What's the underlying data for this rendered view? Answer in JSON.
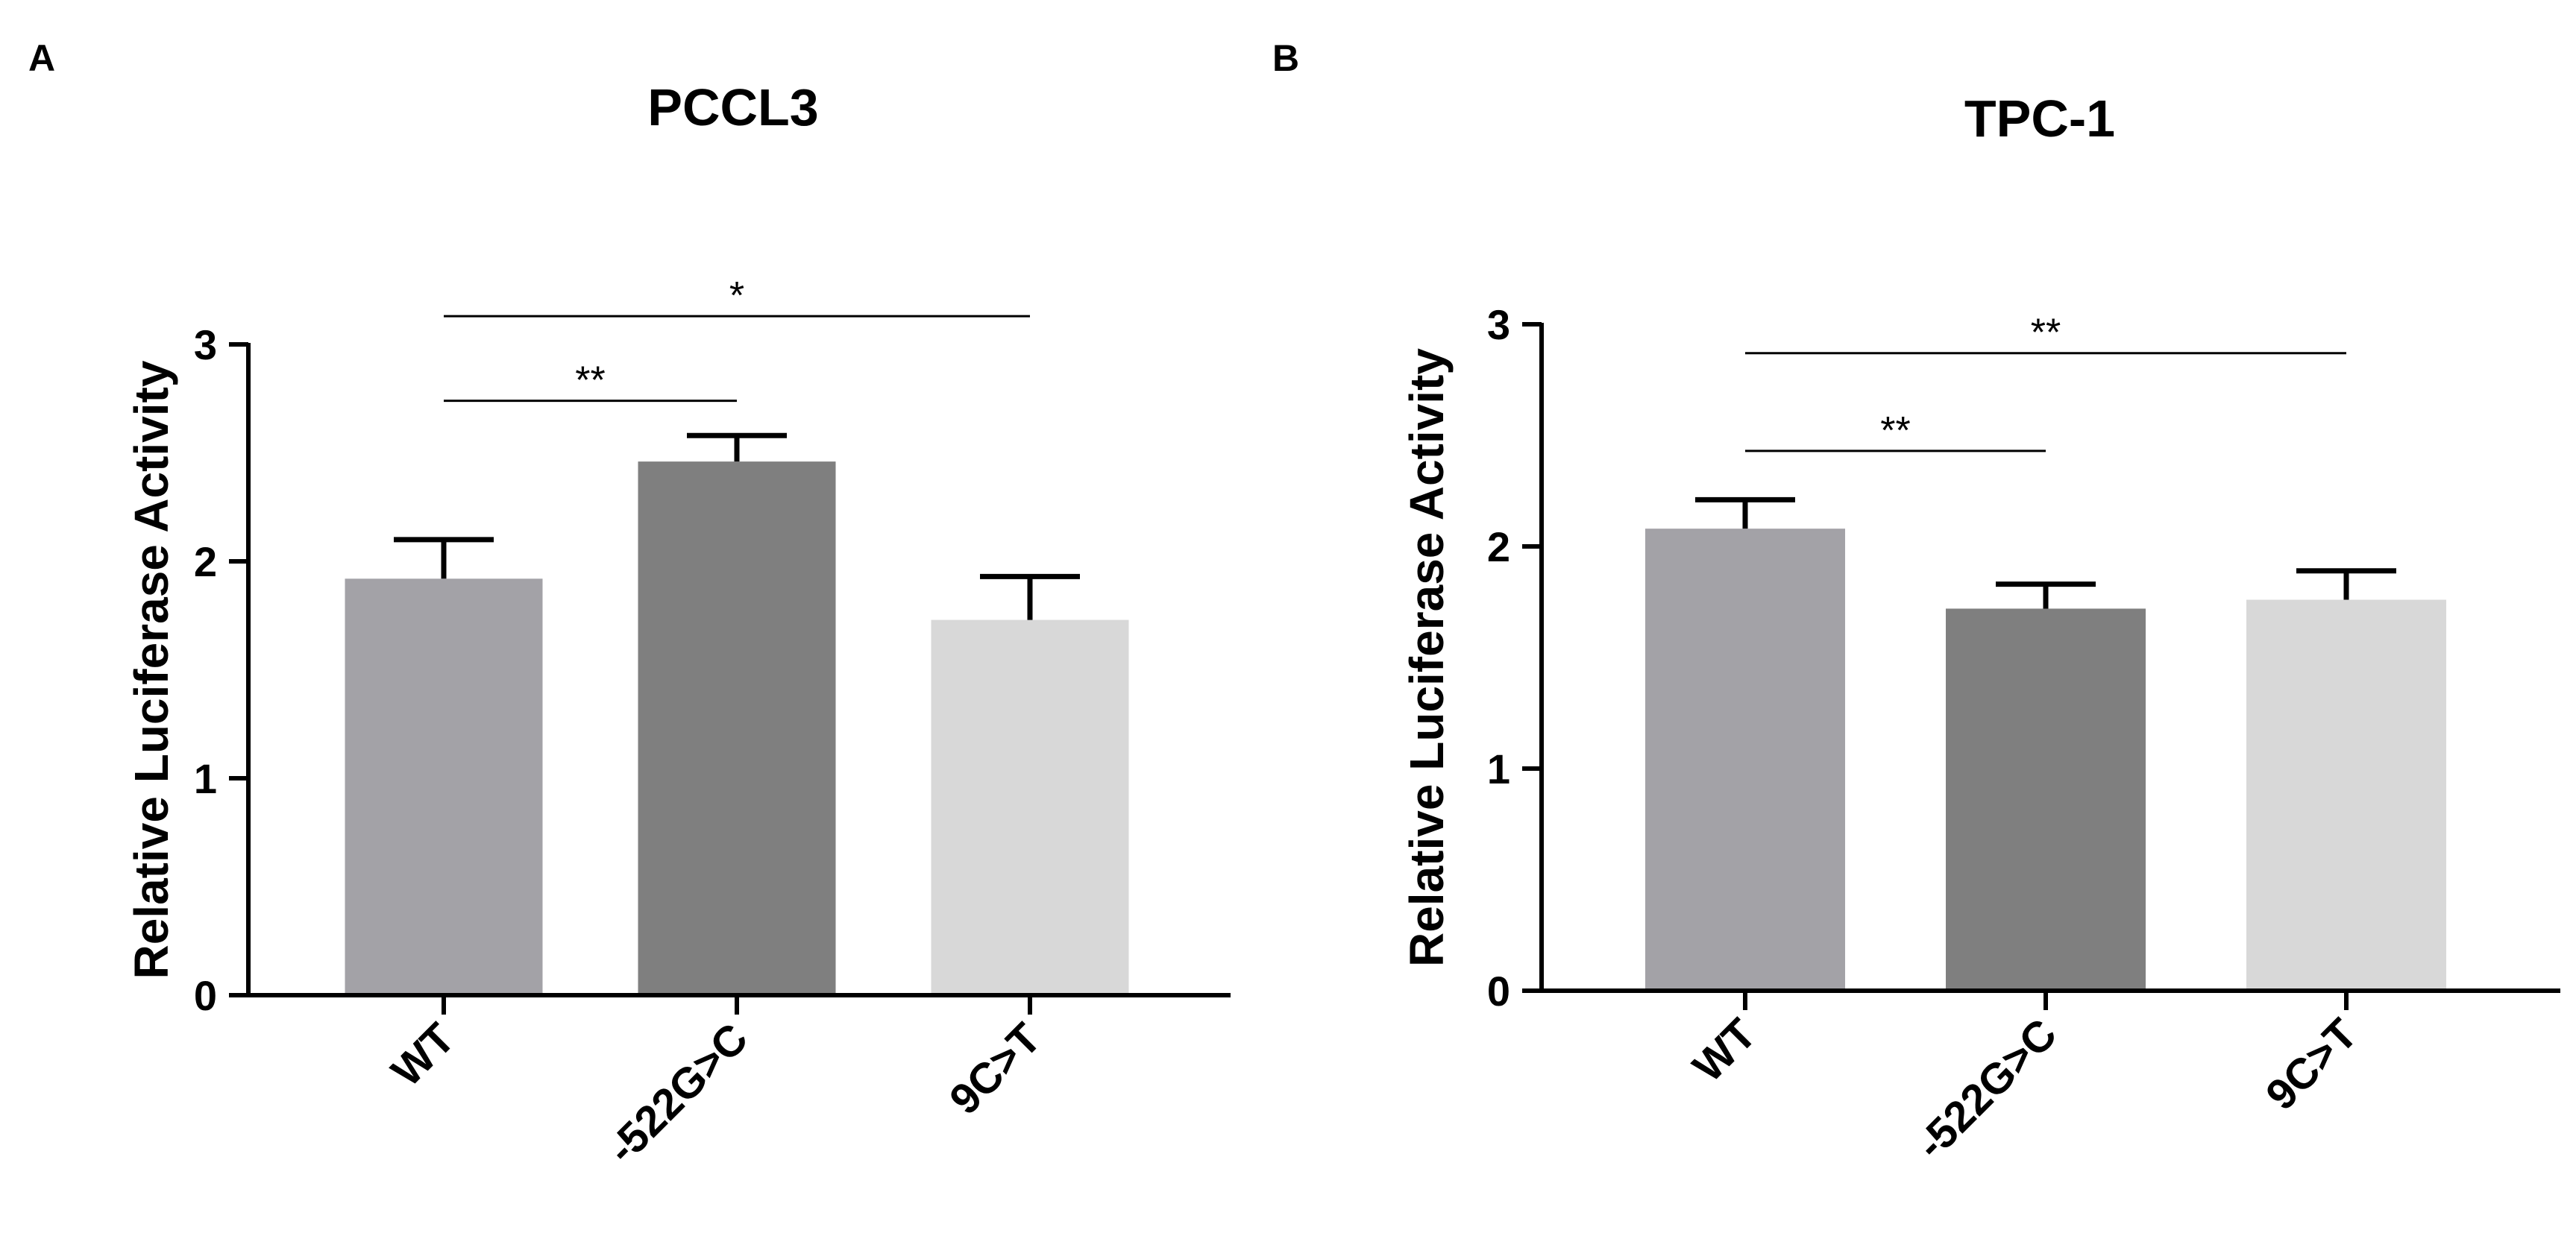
{
  "chart_data": [
    {
      "panel": "A",
      "type": "bar",
      "title": "PCCL3",
      "xlabel": "",
      "ylabel": "Relative Luciferase Activity",
      "ylim": [
        0,
        3
      ],
      "yticks": [
        "0",
        "1",
        "2",
        "3"
      ],
      "categories": [
        "WT",
        "-522G>C",
        "9C>T"
      ],
      "values": [
        1.92,
        2.46,
        1.73
      ],
      "errors": [
        0.18,
        0.12,
        0.2
      ],
      "colors": [
        "#a3a2a7",
        "#7f7f7f",
        "#d8d8d8"
      ],
      "significance": [
        {
          "from": 0,
          "to": 1,
          "label": "**",
          "y": 2.74
        },
        {
          "from": 0,
          "to": 2,
          "label": "*",
          "y": 3.13
        }
      ]
    },
    {
      "panel": "B",
      "type": "bar",
      "title": "TPC-1",
      "xlabel": "",
      "ylabel": "Relative Luciferase Activity",
      "ylim": [
        0,
        3
      ],
      "yticks": [
        "0",
        "1",
        "2",
        "3"
      ],
      "categories": [
        "WT",
        "-522G>C",
        "9C>T"
      ],
      "values": [
        2.08,
        1.72,
        1.76
      ],
      "errors": [
        0.13,
        0.11,
        0.13
      ],
      "colors": [
        "#a3a2a7",
        "#7f7f7f",
        "#d8d8d8"
      ],
      "significance": [
        {
          "from": 0,
          "to": 1,
          "label": "**",
          "y": 2.43
        },
        {
          "from": 0,
          "to": 2,
          "label": "**",
          "y": 2.87
        }
      ]
    }
  ]
}
